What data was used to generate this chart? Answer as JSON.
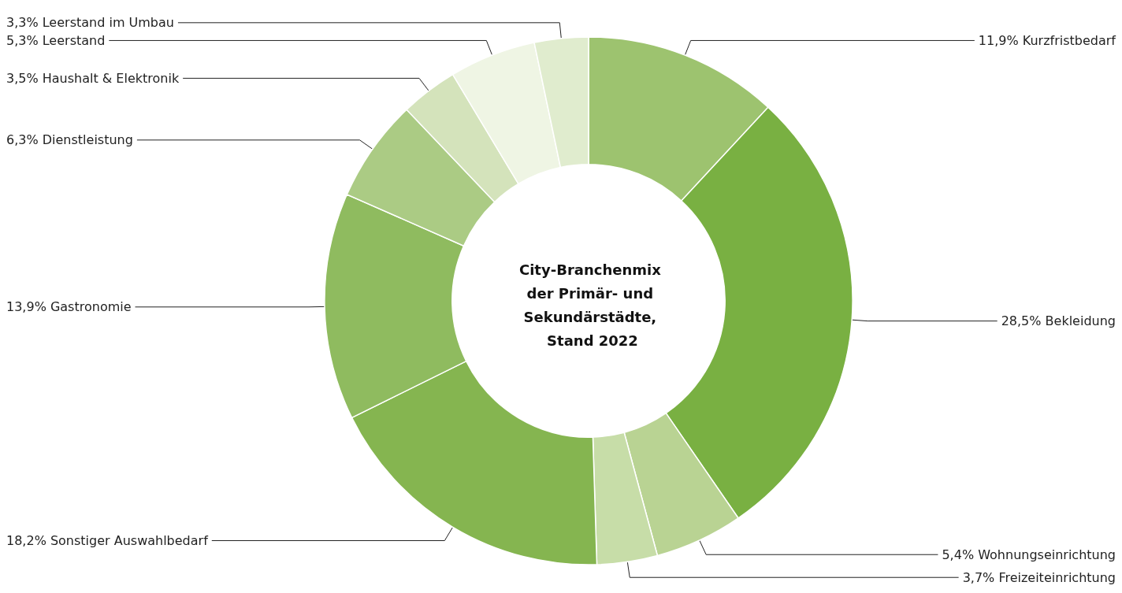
{
  "chart_data": {
    "type": "donut",
    "title": "City-Branchenmix der Primär- und Sekundärstädte, Stand 2022",
    "categories": [
      "Kurzfristbedarf",
      "Bekleidung",
      "Wohnungseinrichtung",
      "Freizeiteinrichtung",
      "Sonstiger Auswahlbedarf",
      "Gastronomie",
      "Dienstleistung",
      "Haushalt & Elektronik",
      "Leerstand",
      "Leerstand im Umbau"
    ],
    "values": [
      11.9,
      28.5,
      5.4,
      3.7,
      18.2,
      13.9,
      6.3,
      3.5,
      5.3,
      3.3
    ],
    "value_labels": [
      "11,9%",
      "28,5%",
      "5,4%",
      "3,7%",
      "18,2%",
      "13,9%",
      "6,3%",
      "3,5%",
      "5,3%",
      "3,3%"
    ],
    "colors": [
      "#9dc36f",
      "#79b042",
      "#b9d393",
      "#c7dda8",
      "#85b550",
      "#8fbb5f",
      "#abcb84",
      "#d4e3bb",
      "#eff5e4",
      "#e0ecce"
    ],
    "legend": false
  }
}
